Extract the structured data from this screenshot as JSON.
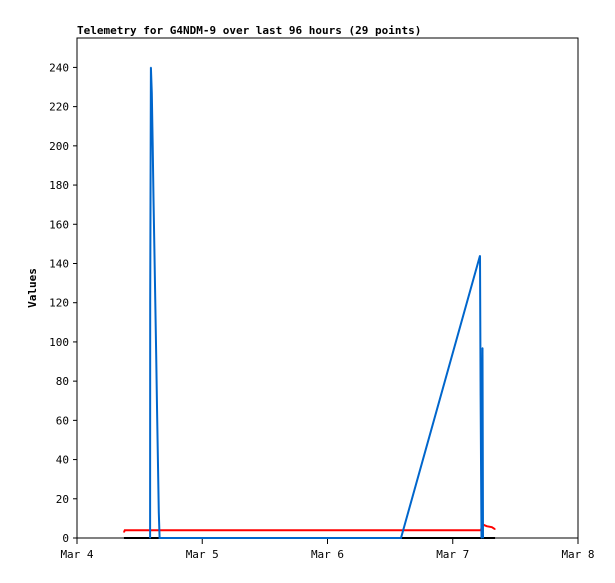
{
  "chart_data": {
    "type": "line",
    "title": "Telemetry for G4NDM-9 over last 96 hours (29 points)",
    "xlabel": "",
    "ylabel": "Values",
    "x_ticks": [
      "Mar 4",
      "Mar 5",
      "Mar 6",
      "Mar 7",
      "Mar 8"
    ],
    "x_range": [
      "Mar 4 00:00",
      "Mar 8 00:00"
    ],
    "y_ticks": [
      0,
      20,
      40,
      60,
      80,
      100,
      120,
      140,
      160,
      180,
      200,
      220,
      240
    ],
    "ylim": [
      0,
      255
    ],
    "grid": false,
    "series": [
      {
        "color": "#000000",
        "points": [
          [
            "Mar 4 09:00",
            0
          ],
          [
            "Mar 7 08:06",
            0
          ]
        ]
      },
      {
        "color": "#ff0000",
        "points": [
          [
            "Mar 4 09:00",
            3
          ],
          [
            "Mar 4 09:10",
            4
          ],
          [
            "Mar 7 05:25",
            4
          ],
          [
            "Mar 7 05:40",
            7
          ],
          [
            "Mar 7 06:30",
            6
          ],
          [
            "Mar 7 07:30",
            5.5
          ],
          [
            "Mar 7 08:06",
            4.5
          ]
        ]
      },
      {
        "color": "#0066cc",
        "points": [
          [
            "Mar 4 14:00",
            0
          ],
          [
            "Mar 4 14:02",
            120
          ],
          [
            "Mar 4 14:10",
            240
          ],
          [
            "Mar 4 14:20",
            227
          ],
          [
            "Mar 4 14:30",
            200
          ],
          [
            "Mar 4 14:40",
            173
          ],
          [
            "Mar 4 14:50",
            147
          ],
          [
            "Mar 4 15:00",
            120
          ],
          [
            "Mar 4 15:10",
            93
          ],
          [
            "Mar 4 15:20",
            67
          ],
          [
            "Mar 4 15:30",
            40
          ],
          [
            "Mar 4 15:40",
            13
          ],
          [
            "Mar 4 15:50",
            0
          ],
          [
            "Mar 6 14:05",
            0
          ],
          [
            "Mar 7 05:13",
            144
          ],
          [
            "Mar 7 05:20",
            73
          ],
          [
            "Mar 7 05:30",
            0
          ],
          [
            "Mar 7 05:42",
            97
          ],
          [
            "Mar 7 05:48",
            0
          ]
        ]
      }
    ]
  }
}
